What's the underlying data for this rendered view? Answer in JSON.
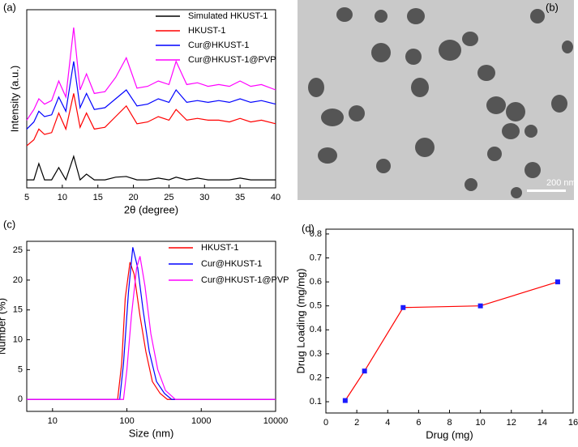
{
  "chart_data": [
    {
      "type": "line",
      "label": "(a)",
      "xlabel": "2θ (degree)",
      "ylabel": "Intensity (a.u.)",
      "x": [
        5,
        6,
        6.7,
        7.5,
        8.5,
        9.5,
        10.5,
        11.6,
        12.5,
        13.4,
        14.5,
        16,
        17.5,
        19,
        20.5,
        22,
        23.5,
        25,
        26,
        27.5,
        29,
        30.5,
        32,
        33.5,
        35,
        36.5,
        38,
        40
      ],
      "xlim": [
        5,
        40
      ],
      "xticks": [
        5,
        10,
        15,
        20,
        25,
        30,
        35,
        40
      ],
      "ylim": [
        0,
        100
      ],
      "legend": "upper right",
      "series": [
        {
          "name": "Simulated HKUST-1",
          "color": "#000000",
          "values": [
            4.5,
            4.5,
            13.6,
            4.5,
            4.5,
            11.4,
            4.5,
            17.7,
            4.5,
            7.7,
            4.5,
            4.5,
            6,
            6.4,
            4.5,
            4.5,
            5.5,
            4.5,
            6,
            4.5,
            5.5,
            4.5,
            4.5,
            4.5,
            5.5,
            4.5,
            4.5,
            4.5
          ]
        },
        {
          "name": "HKUST-1",
          "color": "#ff0000",
          "values": [
            23.6,
            27,
            33,
            30,
            31,
            42,
            33,
            53,
            34,
            42,
            33,
            34,
            40,
            46,
            36,
            37,
            40,
            38,
            44,
            38,
            39,
            38,
            38,
            37,
            39,
            37,
            38,
            36
          ]
        },
        {
          "name": "Cur@HKUST-1",
          "color": "#0000ff",
          "values": [
            33,
            37,
            43,
            40,
            41,
            51,
            43,
            71,
            45,
            53,
            44,
            45,
            50,
            55,
            46,
            47,
            50,
            48,
            55,
            48,
            49,
            48,
            49,
            48,
            50,
            48,
            49,
            47
          ]
        },
        {
          "name": "Cur@HKUST-1@PVP",
          "color": "#ff00ff",
          "values": [
            38,
            44,
            50,
            47,
            49,
            60,
            51,
            90,
            55,
            64,
            53,
            54,
            62,
            73,
            56,
            57,
            60,
            58,
            71,
            58,
            59,
            57,
            58,
            57,
            60,
            57,
            58,
            55
          ]
        }
      ]
    },
    {
      "type": "image",
      "label": "(b)",
      "scale_bar": "200 nm"
    },
    {
      "type": "line",
      "label": "(c)",
      "xlabel": "Size (nm)",
      "ylabel": "Number (%)",
      "xscale": "log",
      "xlim": [
        4.5,
        10000
      ],
      "xticks": [
        10,
        100,
        1000,
        10000
      ],
      "ylim": [
        -2,
        26.5
      ],
      "yticks": [
        0,
        5,
        10,
        15,
        20,
        25
      ],
      "legend": "upper right",
      "series": [
        {
          "name": "HKUST-1",
          "color": "#ff0000",
          "x": [
            4.5,
            75,
            85,
            95,
            110,
            125,
            150,
            180,
            220,
            280,
            350,
            10000
          ],
          "values": [
            0,
            0,
            6,
            17,
            23,
            21,
            14,
            8,
            3,
            1,
            0,
            0
          ]
        },
        {
          "name": "Cur@HKUST-1",
          "color": "#0000ff",
          "x": [
            4.5,
            80,
            90,
            105,
            120,
            140,
            165,
            200,
            250,
            320,
            400,
            10000
          ],
          "values": [
            0,
            0,
            6,
            18,
            25.5,
            22,
            15,
            8,
            3,
            1,
            0,
            0
          ]
        },
        {
          "name": "Cur@HKUST-1@PVP",
          "color": "#ff00ff",
          "x": [
            4.5,
            90,
            100,
            115,
            135,
            150,
            175,
            210,
            260,
            330,
            450,
            10000
          ],
          "values": [
            0,
            0,
            5,
            14,
            22,
            24,
            19,
            11,
            5,
            1.5,
            0,
            0
          ]
        }
      ]
    },
    {
      "type": "line",
      "label": "(d)",
      "xlabel": "Drug (mg)",
      "ylabel": "Drug Loading (mg/mg)",
      "x": [
        1.25,
        2.5,
        5,
        10,
        15
      ],
      "values": [
        0.105,
        0.228,
        0.493,
        0.5,
        0.6
      ],
      "color": "#ff0000",
      "marker_color": "#1a1aff",
      "xlim": [
        0,
        16
      ],
      "xticks": [
        0,
        2,
        4,
        6,
        8,
        10,
        12,
        14,
        16
      ],
      "ylim": [
        0.053,
        0.82
      ],
      "yticks": [
        0.1,
        0.2,
        0.3,
        0.4,
        0.5,
        0.6,
        0.7,
        0.8
      ]
    }
  ]
}
